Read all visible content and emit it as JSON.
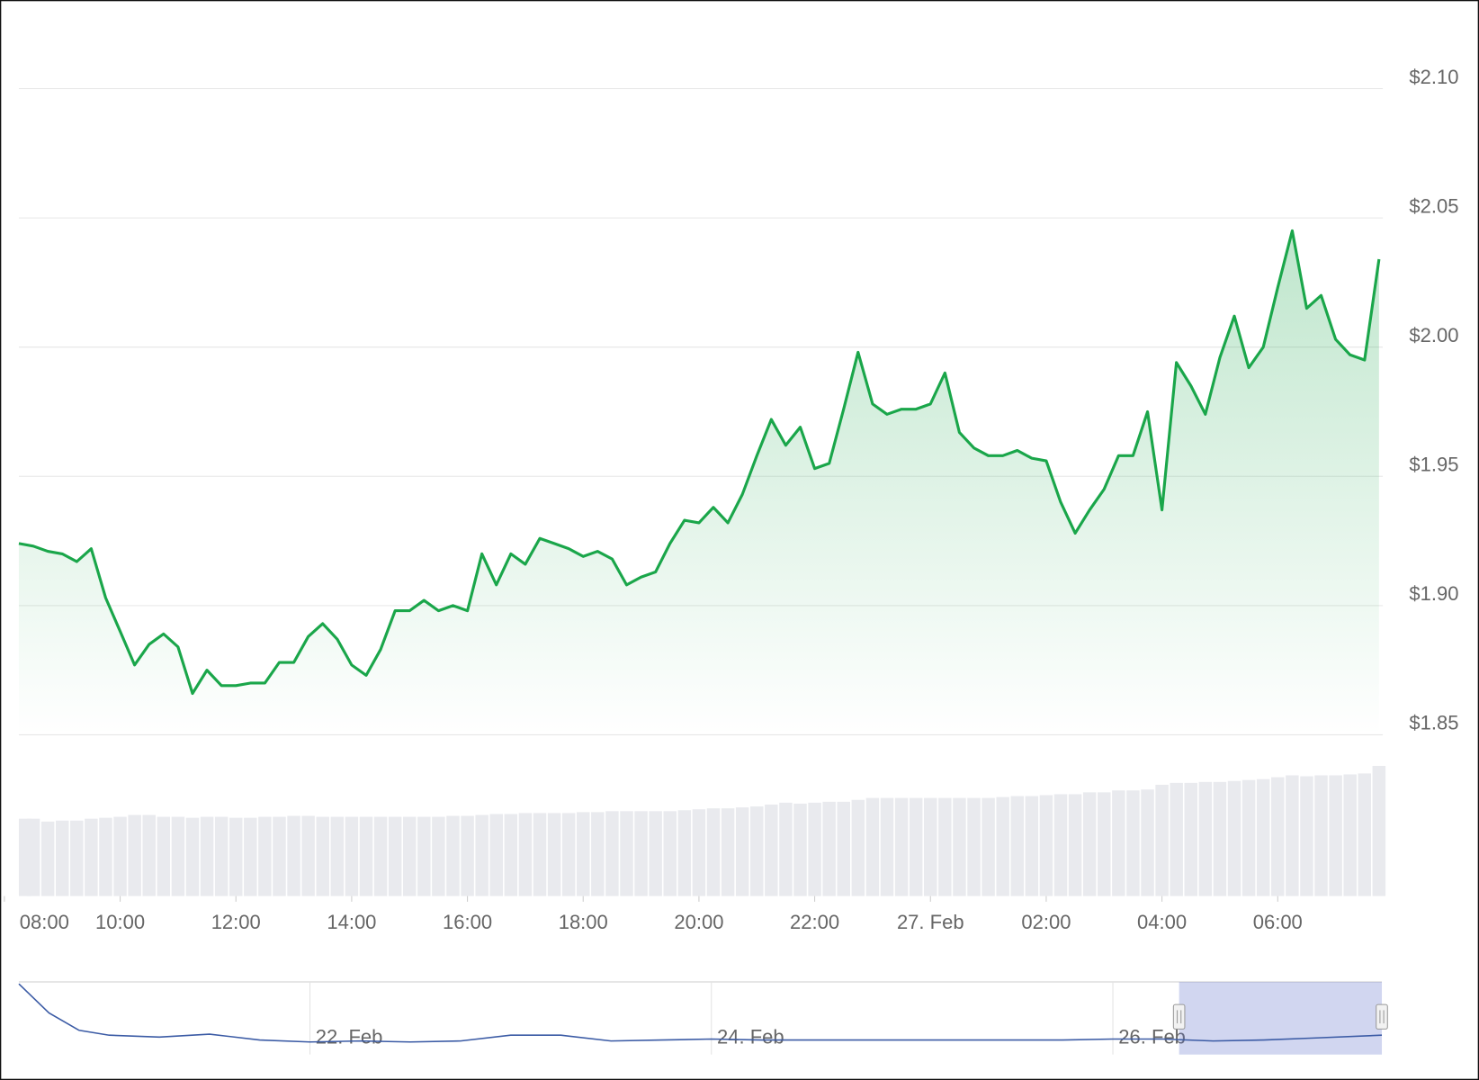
{
  "chart_data": {
    "type": "line",
    "color": "#1aa64a",
    "x": [
      8.25,
      8.5,
      8.75,
      9,
      9.25,
      9.5,
      9.75,
      10,
      10.25,
      10.5,
      10.75,
      11,
      11.25,
      11.5,
      11.75,
      12,
      12.25,
      12.5,
      12.75,
      13,
      13.25,
      13.5,
      13.75,
      14,
      14.25,
      14.5,
      14.75,
      15,
      15.25,
      15.5,
      15.75,
      16,
      16.25,
      16.5,
      16.75,
      17,
      17.25,
      17.5,
      17.75,
      18,
      18.25,
      18.5,
      18.75,
      19,
      19.25,
      19.5,
      19.75,
      20,
      20.25,
      20.5,
      20.75,
      21,
      21.25,
      21.5,
      21.75,
      22,
      22.25,
      22.5,
      22.75,
      23,
      23.25,
      23.5,
      23.75,
      24,
      24.25,
      24.5,
      24.75,
      25,
      25.25,
      25.5,
      25.75,
      26,
      26.25,
      26.5,
      26.75,
      27,
      27.25,
      27.5,
      27.75,
      28,
      28.25,
      28.5,
      28.75,
      29,
      29.25,
      29.5,
      29.75,
      30,
      30.25,
      30.5,
      30.75,
      31,
      31.25,
      31.5,
      31.75
    ],
    "values": [
      1.924,
      1.923,
      1.921,
      1.92,
      1.917,
      1.922,
      1.903,
      1.89,
      1.877,
      1.885,
      1.889,
      1.884,
      1.866,
      1.875,
      1.869,
      1.869,
      1.87,
      1.87,
      1.878,
      1.878,
      1.888,
      1.893,
      1.887,
      1.877,
      1.873,
      1.883,
      1.898,
      1.898,
      1.902,
      1.898,
      1.9,
      1.898,
      1.92,
      1.908,
      1.92,
      1.916,
      1.926,
      1.924,
      1.922,
      1.919,
      1.921,
      1.918,
      1.908,
      1.911,
      1.913,
      1.924,
      1.933,
      1.932,
      1.938,
      1.932,
      1.943,
      1.958,
      1.972,
      1.962,
      1.969,
      1.953,
      1.955,
      1.976,
      1.998,
      1.978,
      1.974,
      1.976,
      1.976,
      1.978,
      1.99,
      1.967,
      1.961,
      1.958,
      1.958,
      1.96,
      1.957,
      1.956,
      1.94,
      1.928,
      1.937,
      1.945,
      1.958,
      1.958,
      1.975,
      1.937,
      1.994,
      1.985,
      1.974,
      1.996,
      2.012,
      1.992,
      2.0,
      2.023,
      2.045,
      2.015,
      2.02,
      2.003,
      1.997,
      1.995,
      2.034
    ],
    "volume": [
      82,
      82,
      79,
      80,
      80,
      82,
      83,
      84,
      86,
      86,
      84,
      84,
      83,
      84,
      84,
      83,
      83,
      84,
      84,
      85,
      85,
      84,
      84,
      84,
      84,
      84,
      84,
      84,
      84,
      84,
      85,
      85,
      86,
      87,
      87,
      88,
      88,
      88,
      88,
      89,
      89,
      90,
      90,
      90,
      90,
      90,
      91,
      92,
      93,
      93,
      94,
      95,
      97,
      99,
      98,
      99,
      100,
      100,
      102,
      104,
      104,
      104,
      104,
      104,
      104,
      104,
      104,
      104,
      105,
      106,
      106,
      107,
      108,
      108,
      110,
      110,
      112,
      112,
      113,
      118,
      120,
      120,
      121,
      121,
      122,
      123,
      124,
      126,
      128,
      127,
      128,
      128,
      129,
      130,
      138
    ],
    "xlim": [
      8.25,
      31.75
    ],
    "ylim": [
      1.85,
      2.1
    ],
    "yticks": [
      {
        "value": 1.85,
        "label": "$1.85"
      },
      {
        "value": 1.9,
        "label": "$1.90"
      },
      {
        "value": 1.95,
        "label": "$1.95"
      },
      {
        "value": 2.0,
        "label": "$2.00"
      },
      {
        "value": 2.05,
        "label": "$2.05"
      },
      {
        "value": 2.1,
        "label": "$2.10"
      }
    ],
    "xticks": [
      {
        "value": 8,
        "label": "08:00"
      },
      {
        "value": 10,
        "label": "10:00"
      },
      {
        "value": 12,
        "label": "12:00"
      },
      {
        "value": 14,
        "label": "14:00"
      },
      {
        "value": 16,
        "label": "16:00"
      },
      {
        "value": 18,
        "label": "18:00"
      },
      {
        "value": 20,
        "label": "20:00"
      },
      {
        "value": 22,
        "label": "22:00"
      },
      {
        "value": 24,
        "label": "27. Feb"
      },
      {
        "value": 26,
        "label": "02:00"
      },
      {
        "value": 28,
        "label": "04:00"
      },
      {
        "value": 30,
        "label": "06:00"
      }
    ],
    "grid": true,
    "navigator": {
      "color": "#3b5ba5",
      "x": [
        20.55,
        20.7,
        20.85,
        21,
        21.25,
        21.5,
        21.75,
        22,
        22.25,
        22.5,
        22.75,
        23,
        23.25,
        23.5,
        23.75,
        24,
        24.25,
        24.5,
        24.75,
        25,
        25.25,
        25.5,
        25.75,
        26,
        26.25,
        26.5,
        26.75,
        27,
        27.34
      ],
      "values": [
        2.53,
        2.23,
        2.05,
        2.0,
        1.98,
        2.01,
        1.95,
        1.93,
        1.94,
        1.93,
        1.94,
        2.0,
        2.0,
        1.94,
        1.95,
        1.96,
        1.95,
        1.95,
        1.95,
        1.95,
        1.95,
        1.95,
        1.95,
        1.96,
        1.96,
        1.94,
        1.95,
        1.97,
        2.0
      ],
      "xlim": [
        20.55,
        27.34
      ],
      "ylim": [
        1.8,
        2.55
      ],
      "xticks": [
        {
          "value": 22,
          "label": "22. Feb"
        },
        {
          "value": 24,
          "label": "24. Feb"
        },
        {
          "value": 26,
          "label": "26. Feb"
        }
      ],
      "selection": [
        26.33,
        27.34
      ]
    }
  }
}
